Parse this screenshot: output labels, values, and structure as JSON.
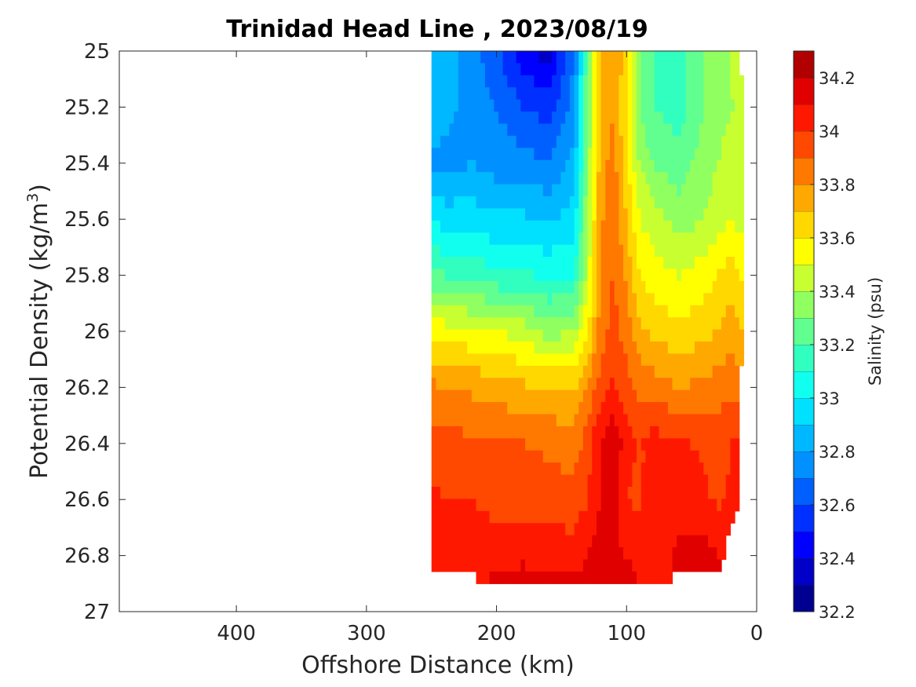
{
  "chart_data": {
    "type": "heatmap",
    "title": "Trinidad Head Line , 2023/08/19",
    "xlabel": "Offshore Distance (km)",
    "ylabel_main": "Potential Density (kg/m",
    "ylabel_sup": "3",
    "ylabel_close": ")",
    "xlim": [
      490,
      0
    ],
    "x_reversed": true,
    "ylim": [
      25,
      27
    ],
    "y_reversed": true,
    "x_ticks": [
      "400",
      "300",
      "200",
      "100",
      "0"
    ],
    "x_tick_values": [
      400,
      300,
      200,
      100,
      0
    ],
    "y_ticks": [
      "25",
      "25.2",
      "25.4",
      "25.6",
      "25.8",
      "26",
      "26.2",
      "26.4",
      "26.6",
      "26.8",
      "27"
    ],
    "y_tick_values": [
      25,
      25.2,
      25.4,
      25.6,
      25.8,
      26,
      26.2,
      26.4,
      26.6,
      26.8,
      27
    ],
    "colorbar": {
      "label": "Salinity (psu)",
      "range": [
        32.2,
        34.3
      ],
      "ticks": [
        "32.2",
        "32.4",
        "32.6",
        "32.8",
        "33",
        "33.2",
        "33.4",
        "33.6",
        "33.8",
        "34",
        "34.2"
      ],
      "tick_values": [
        32.2,
        32.4,
        32.6,
        32.8,
        33.0,
        33.2,
        33.4,
        33.6,
        33.8,
        34.0,
        34.2
      ],
      "levels": [
        32.2,
        32.3,
        32.4,
        32.5,
        32.6,
        32.7,
        32.8,
        32.9,
        33.0,
        33.1,
        33.2,
        33.3,
        33.4,
        33.5,
        33.6,
        33.7,
        33.8,
        33.9,
        34.0,
        34.1,
        34.2,
        34.3
      ],
      "colors": [
        "#000090",
        "#0000c8",
        "#0000ff",
        "#0030ff",
        "#0060ff",
        "#0090ff",
        "#00b8ff",
        "#00e0ff",
        "#10ffef",
        "#30ffc0",
        "#60ff90",
        "#90ff60",
        "#c8ff30",
        "#ffff00",
        "#ffd800",
        "#ffa800",
        "#ff7800",
        "#ff4800",
        "#ff1800",
        "#e00000",
        "#b00000"
      ]
    },
    "grid": false,
    "stations_km": [
      250,
      240,
      220,
      200,
      180,
      160,
      140,
      130,
      120,
      110,
      100,
      90,
      80,
      60,
      40,
      30,
      20,
      10
    ],
    "density_levels": [
      25.0,
      25.2,
      25.4,
      25.6,
      25.8,
      26.0,
      26.2,
      26.4,
      26.6,
      26.8,
      26.9
    ],
    "salinity": [
      [
        32.85,
        32.85,
        32.75,
        32.62,
        32.45,
        32.35,
        32.7,
        33.3,
        33.7,
        33.8,
        33.65,
        33.3,
        33.2,
        33.15,
        33.3,
        33.35,
        33.4,
        null
      ],
      [
        32.9,
        32.85,
        32.75,
        32.7,
        32.6,
        32.55,
        32.75,
        33.3,
        33.7,
        33.8,
        33.6,
        33.3,
        33.2,
        33.15,
        33.3,
        33.35,
        33.4,
        33.4
      ],
      [
        32.78,
        32.75,
        32.8,
        32.75,
        32.75,
        32.7,
        32.85,
        33.35,
        33.75,
        33.85,
        33.62,
        33.4,
        33.3,
        33.25,
        33.35,
        33.4,
        33.45,
        33.45
      ],
      [
        32.98,
        32.96,
        32.95,
        32.92,
        32.92,
        32.88,
        32.95,
        33.4,
        33.78,
        33.88,
        33.7,
        33.5,
        33.45,
        33.35,
        33.4,
        33.45,
        33.5,
        33.45
      ],
      [
        33.22,
        33.2,
        33.18,
        33.12,
        33.12,
        33.08,
        33.1,
        33.45,
        33.82,
        33.9,
        33.78,
        33.6,
        33.55,
        33.5,
        33.55,
        33.6,
        33.65,
        33.58
      ],
      [
        33.58,
        33.55,
        33.52,
        33.5,
        33.45,
        33.35,
        33.4,
        33.6,
        33.85,
        33.95,
        33.85,
        33.72,
        33.68,
        33.62,
        33.68,
        33.7,
        33.75,
        33.7
      ],
      [
        33.82,
        33.8,
        33.78,
        33.76,
        33.72,
        33.7,
        33.7,
        33.8,
        33.95,
        34.02,
        33.95,
        33.88,
        33.85,
        33.8,
        33.82,
        33.85,
        33.88,
        null
      ],
      [
        33.95,
        33.95,
        33.92,
        33.9,
        33.9,
        33.88,
        33.85,
        33.95,
        34.12,
        34.18,
        34.05,
        33.98,
        34.05,
        34.02,
        33.98,
        33.95,
        34.0,
        null
      ],
      [
        34.02,
        34.0,
        34.0,
        33.97,
        33.95,
        33.95,
        33.94,
        34.0,
        34.1,
        34.15,
        34.0,
        33.98,
        34.05,
        34.05,
        34.02,
        33.98,
        34.02,
        null
      ],
      [
        34.05,
        34.05,
        34.05,
        34.05,
        34.08,
        34.05,
        34.05,
        34.1,
        34.15,
        34.12,
        34.1,
        34.08,
        34.05,
        34.12,
        34.15,
        34.1,
        null,
        null
      ],
      [
        null,
        null,
        null,
        34.12,
        34.15,
        34.12,
        34.12,
        34.15,
        34.22,
        34.18,
        34.12,
        34.1,
        34.1,
        null,
        null,
        null,
        null,
        null
      ]
    ]
  }
}
